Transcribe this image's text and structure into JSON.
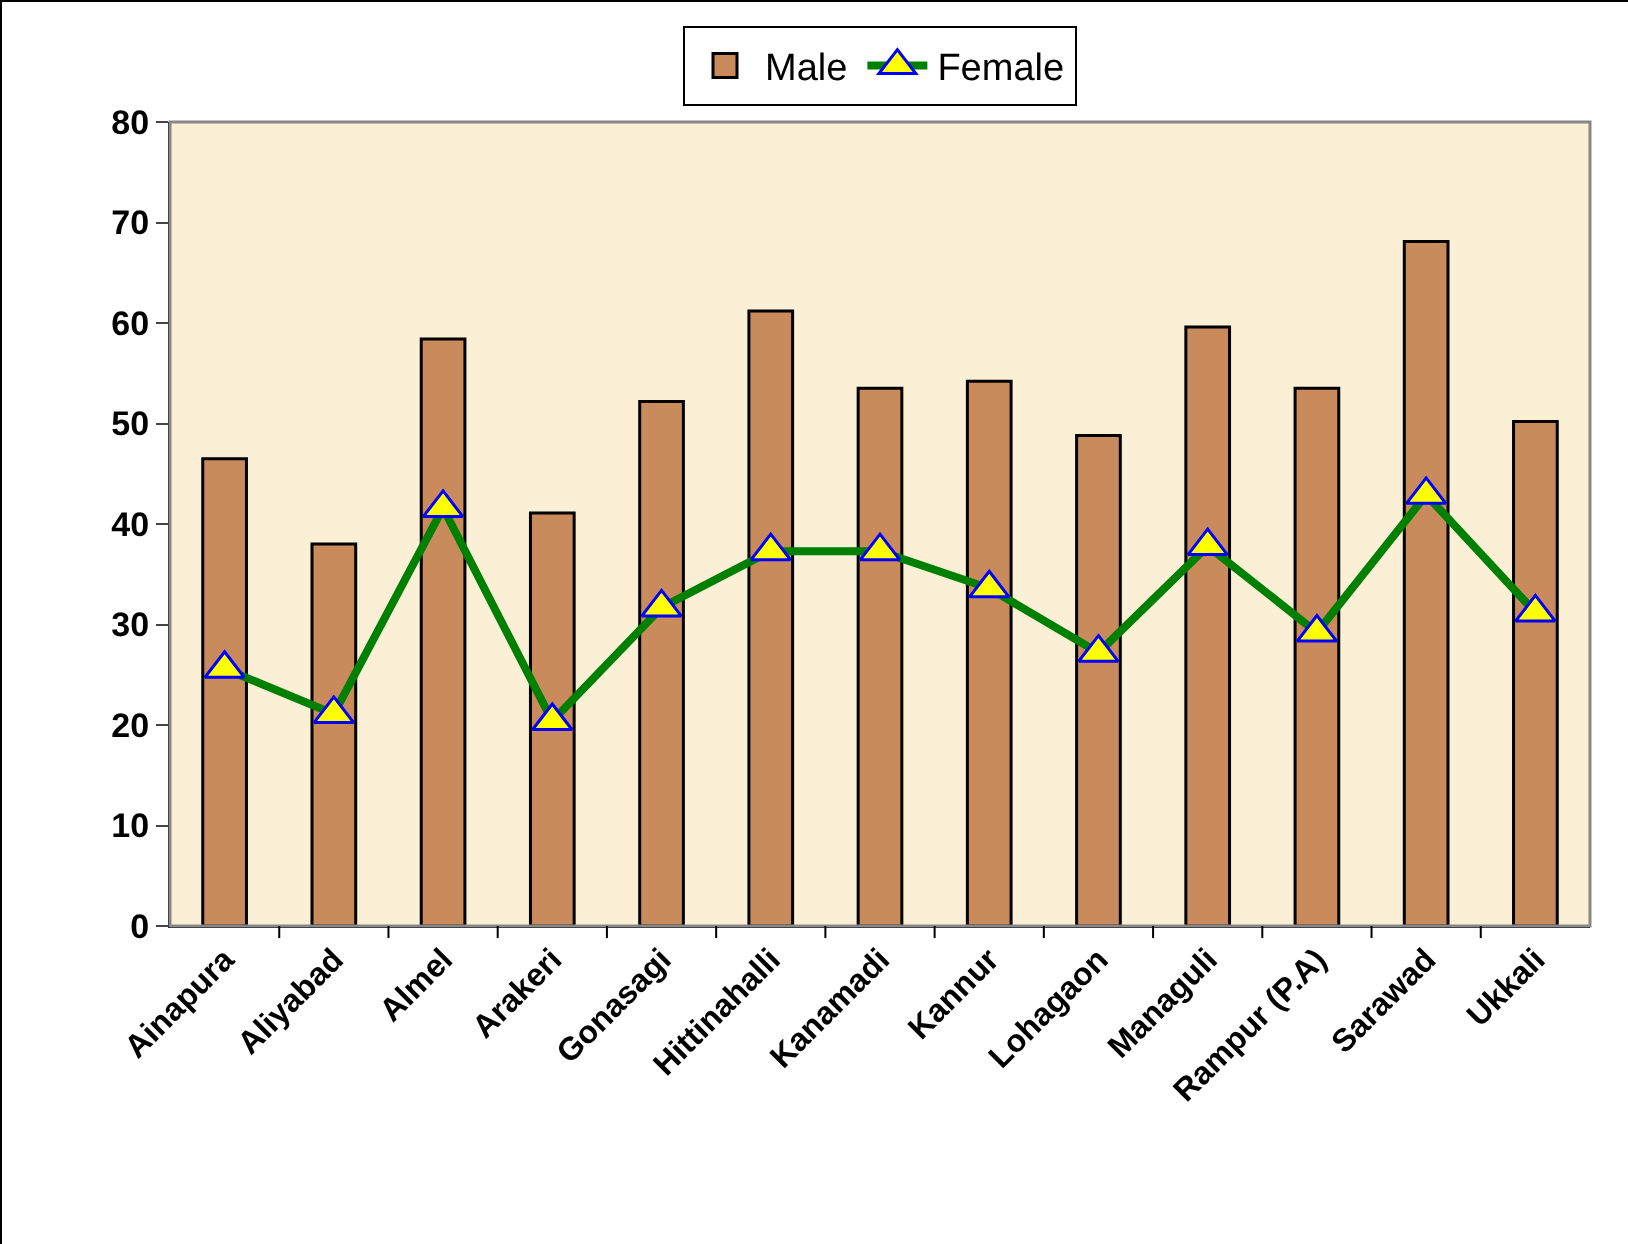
{
  "chart_data": {
    "type": "bar",
    "categories": [
      "Ainapura",
      "Aliyabad",
      "Almel",
      "Arakeri",
      "Gonasagi",
      "Hittinahalli",
      "Kanamadi",
      "Kannur",
      "Lohagaon",
      "Managuli",
      "Rampur (P.A)",
      "Sarawad",
      "Ukkali"
    ],
    "series": [
      {
        "name": "Male",
        "color": "#c98a5c",
        "values": [
          46.5,
          38.0,
          58.4,
          41.1,
          52.2,
          61.2,
          53.5,
          54.2,
          48.8,
          59.6,
          53.5,
          68.1,
          50.2
        ]
      },
      {
        "name": "Female",
        "type": "line",
        "color": "#008000",
        "marker": "triangle",
        "values": [
          25.6,
          21.1,
          41.6,
          20.4,
          31.7,
          37.3,
          37.3,
          33.6,
          27.2,
          37.8,
          29.2,
          42.9,
          31.2
        ]
      }
    ],
    "ylim": [
      0,
      80
    ],
    "yticks": [
      0,
      10,
      20,
      30,
      40,
      50,
      60,
      70,
      80
    ],
    "grid": false,
    "legend": "top"
  }
}
